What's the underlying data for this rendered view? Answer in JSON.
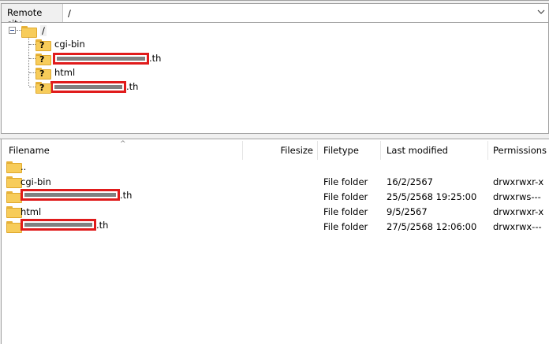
{
  "remote_site": {
    "label": "Remote site:",
    "path": "/"
  },
  "tree": {
    "root": "/",
    "children": [
      {
        "name": "cgi-bin",
        "redacted": false
      },
      {
        "name": ".th",
        "redacted": true
      },
      {
        "name": "html",
        "redacted": false
      },
      {
        "name": ".th",
        "redacted": true
      }
    ]
  },
  "list": {
    "columns": [
      "Filename",
      "Filesize",
      "Filetype",
      "Last modified",
      "Permissions"
    ],
    "sort_icon": "chevron-up-icon",
    "rows": [
      {
        "name": "..",
        "redacted": false,
        "size": "",
        "type": "",
        "modified": "",
        "perms": ""
      },
      {
        "name": "cgi-bin",
        "redacted": false,
        "size": "",
        "type": "File folder",
        "modified": "16/2/2567",
        "perms": "drwxrwxr-x"
      },
      {
        "name": ".th",
        "redacted": true,
        "size": "",
        "type": "File folder",
        "modified": "25/5/2568 19:25:00",
        "perms": "drwxrws---"
      },
      {
        "name": "html",
        "redacted": false,
        "size": "",
        "type": "File folder",
        "modified": "9/5/2567",
        "perms": "drwxrwxr-x"
      },
      {
        "name": ".th",
        "redacted": true,
        "size": "",
        "type": "File folder",
        "modified": "27/5/2568 12:06:00",
        "perms": "drwxrwx---"
      }
    ]
  },
  "colors": {
    "redaction": "#e01b1b",
    "folder": "#f7cc5a"
  }
}
